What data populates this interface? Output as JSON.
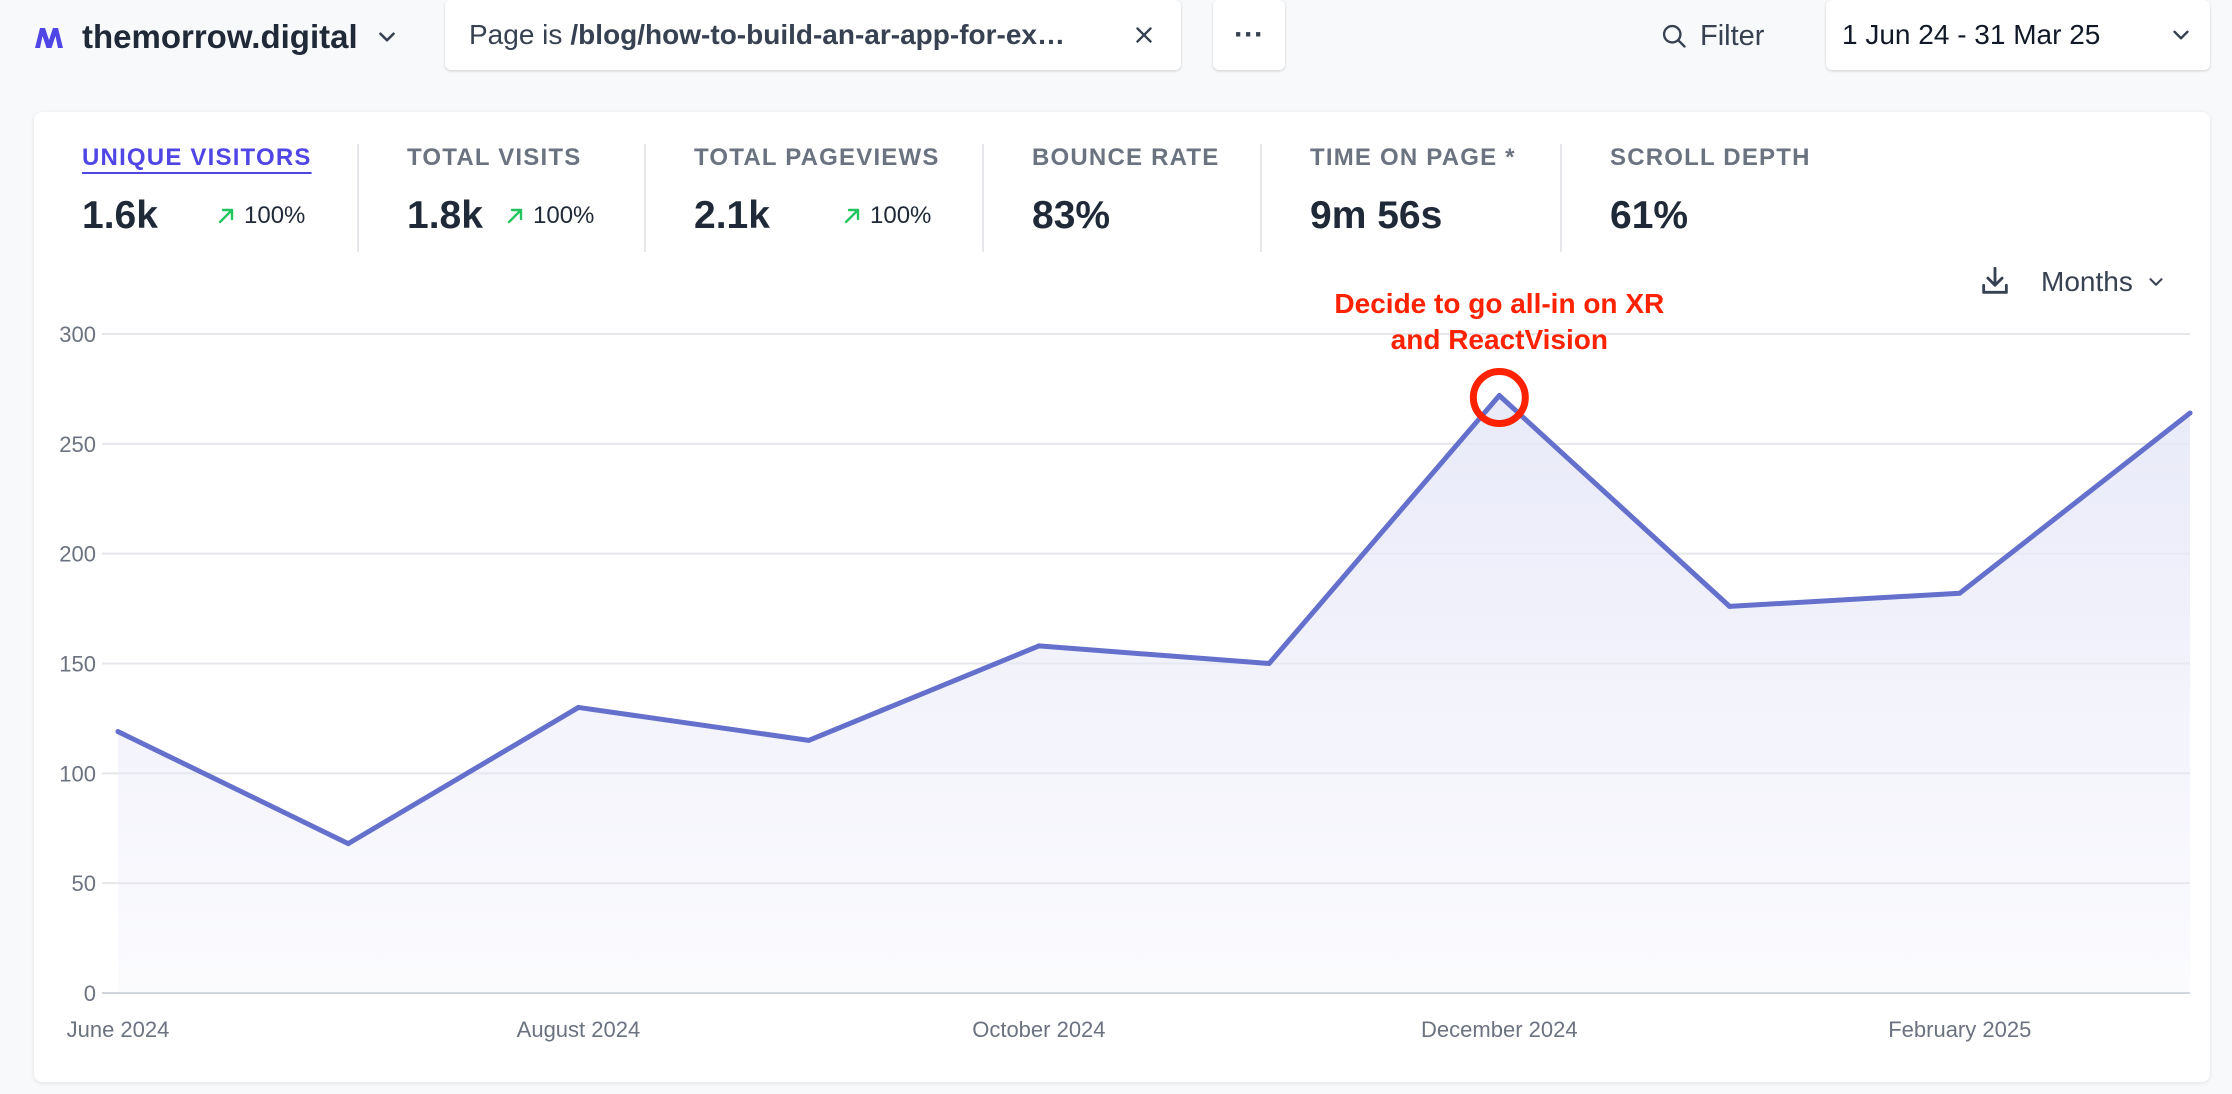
{
  "site": {
    "name": "themorrow.digital"
  },
  "filter": {
    "prefix": "Page is",
    "value": "/blog/how-to-build-an-ar-app-for-ex…"
  },
  "more": {
    "label": "···"
  },
  "filter_button": {
    "label": "Filter"
  },
  "date_range": {
    "label": "1 Jun 24 - 31 Mar 25"
  },
  "metrics": [
    {
      "label": "UNIQUE VISITORS",
      "value": "1.6k",
      "change": "100%"
    },
    {
      "label": "TOTAL VISITS",
      "value": "1.8k",
      "change": "100%"
    },
    {
      "label": "TOTAL PAGEVIEWS",
      "value": "2.1k",
      "change": "100%"
    },
    {
      "label": "BOUNCE RATE",
      "value": "83%"
    },
    {
      "label": "TIME ON PAGE *",
      "value": "9m 56s"
    },
    {
      "label": "SCROLL DEPTH",
      "value": "61%"
    }
  ],
  "interval": {
    "label": "Months"
  },
  "colors": {
    "line": "#6570cc",
    "fill": "#e7e8f8",
    "accent": "#4f46e5",
    "up": "#22c55e",
    "annotation": "#ff2200"
  },
  "chart_data": {
    "type": "area",
    "x": [
      "June 2024",
      "July 2024",
      "August 2024",
      "September 2024",
      "October 2024",
      "November 2024",
      "December 2024",
      "January 2025",
      "February 2025",
      "March 2025"
    ],
    "x_tick_labels": [
      "June 2024",
      "",
      "August 2024",
      "",
      "October 2024",
      "",
      "December 2024",
      "",
      "February 2025",
      ""
    ],
    "series": [
      {
        "values": [
          119,
          68,
          130,
          115,
          158,
          150,
          272,
          176,
          182,
          264
        ]
      }
    ],
    "y_ticks": [
      0,
      50,
      100,
      150,
      200,
      250,
      300
    ],
    "ylim": [
      0,
      300
    ],
    "grid": true,
    "annotation": {
      "lines": [
        "Decide to go all-in on XR",
        "and ReactVision"
      ],
      "at_index": 6
    }
  }
}
